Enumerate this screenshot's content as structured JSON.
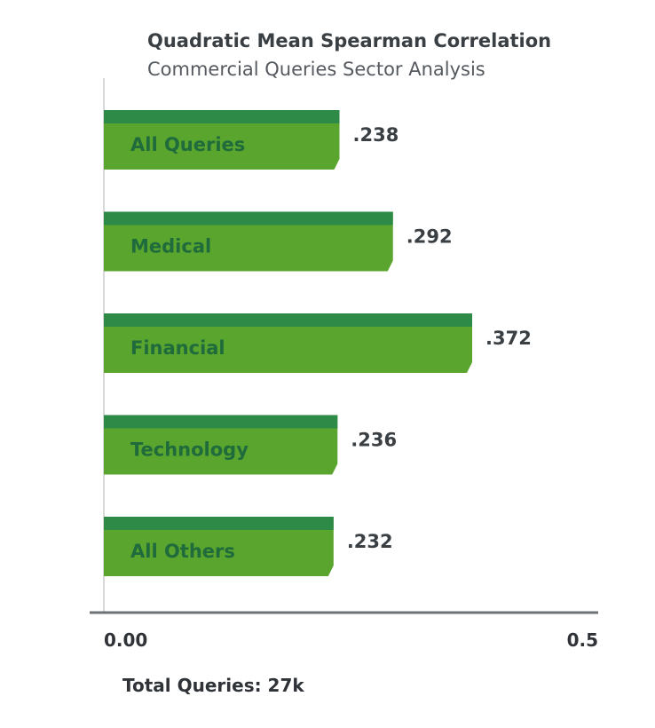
{
  "chart_data": {
    "type": "bar",
    "orientation": "horizontal",
    "title": "Quadratic Mean Spearman Correlation",
    "subtitle": "Commercial Queries Sector Analysis",
    "categories": [
      "All Queries",
      "Medical",
      "Financial",
      "Technology",
      "All Others"
    ],
    "values": [
      0.238,
      0.292,
      0.372,
      0.236,
      0.232
    ],
    "value_labels": [
      ".238",
      ".292",
      ".372",
      ".236",
      ".232"
    ],
    "xlim": [
      0,
      0.5
    ],
    "x_tick_labels": [
      "0.00",
      "0.5"
    ],
    "footer": "Total Queries: 27k",
    "colors": {
      "bar_face": "#5aa52e",
      "bar_top": "#2e8a47",
      "label_text": "#1f6b3c",
      "axis": "#6d7175"
    }
  }
}
